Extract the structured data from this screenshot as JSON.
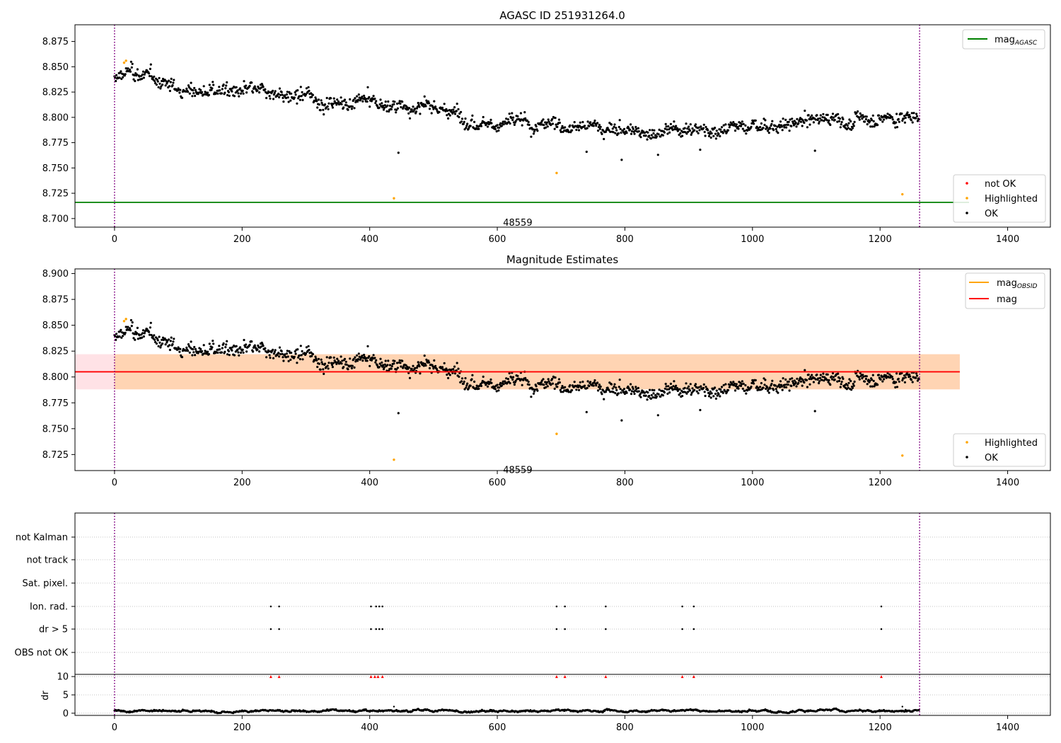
{
  "chart_data": [
    {
      "type": "scatter",
      "title": "AGASC ID 251931264.0",
      "xlim": [
        -62,
        1467
      ],
      "ylim": [
        8.6915,
        8.8915
      ],
      "xticks": [
        0,
        200,
        400,
        600,
        800,
        1000,
        1200,
        1400
      ],
      "xtick_labels": [
        "0",
        "200",
        "400",
        "600",
        "800",
        "1000",
        "1200",
        "1400"
      ],
      "yticks": [
        8.7,
        8.725,
        8.75,
        8.775,
        8.8,
        8.825,
        8.85,
        8.875
      ],
      "ytick_labels": [
        "8.700",
        "8.725",
        "8.750",
        "8.775",
        "8.800",
        "8.825",
        "8.850",
        "8.875"
      ],
      "vlines": [
        0,
        1262
      ],
      "hline": {
        "y": 8.716,
        "label": "mag",
        "label_sub": "AGASC",
        "color": "#008000"
      },
      "annotation": {
        "text": "48559",
        "x": 632,
        "y": 8.6965
      },
      "n_points": 1262,
      "trend": [
        [
          0,
          8.836
        ],
        [
          20,
          8.846
        ],
        [
          100,
          8.828
        ],
        [
          200,
          8.825
        ],
        [
          300,
          8.817
        ],
        [
          400,
          8.814
        ],
        [
          500,
          8.808
        ],
        [
          600,
          8.796
        ],
        [
          700,
          8.792
        ],
        [
          800,
          8.788
        ],
        [
          850,
          8.784
        ],
        [
          900,
          8.791
        ],
        [
          1000,
          8.791
        ],
        [
          1100,
          8.797
        ],
        [
          1200,
          8.8
        ],
        [
          1262,
          8.801
        ]
      ],
      "highlighted": [
        {
          "x": 15,
          "y": 8.854
        },
        {
          "x": 18,
          "y": 8.856
        },
        {
          "x": 438,
          "y": 8.72
        },
        {
          "x": 693,
          "y": 8.745
        },
        {
          "x": 1235,
          "y": 8.724
        }
      ],
      "legend_top": [
        {
          "label": "mag",
          "label_sub": "AGASC",
          "color": "#008000",
          "kind": "line"
        }
      ],
      "legend_bottom": [
        {
          "label": "not OK",
          "color": "#ff0000",
          "kind": "dot"
        },
        {
          "label": "Highlighted",
          "color": "#ffa500",
          "kind": "dot"
        },
        {
          "label": "OK",
          "color": "#000000",
          "kind": "dot"
        }
      ]
    },
    {
      "type": "scatter",
      "title": "Magnitude Estimates",
      "xlim": [
        -62,
        1467
      ],
      "ylim": [
        8.7095,
        8.9045
      ],
      "xticks": [
        0,
        200,
        400,
        600,
        800,
        1000,
        1200,
        1400
      ],
      "xtick_labels": [
        "0",
        "200",
        "400",
        "600",
        "800",
        "1000",
        "1200",
        "1400"
      ],
      "yticks": [
        8.725,
        8.75,
        8.775,
        8.8,
        8.825,
        8.85,
        8.875,
        8.9
      ],
      "ytick_labels": [
        "8.725",
        "8.750",
        "8.775",
        "8.800",
        "8.825",
        "8.850",
        "8.875",
        "8.900"
      ],
      "vlines": [
        0,
        1262
      ],
      "mag_line": {
        "y": 8.805,
        "x_range": [
          -62,
          1325
        ],
        "color": "#ff0000"
      },
      "mag_band": {
        "y_range": [
          8.788,
          8.822
        ],
        "x_range": [
          -62,
          1325
        ],
        "color": "#ffb6c1"
      },
      "obsid_band": {
        "y_range": [
          8.788,
          8.822
        ],
        "x_range": [
          0,
          1325
        ],
        "color": "#ffa500"
      },
      "annotation": {
        "text": "48559",
        "x": 632,
        "y": 8.7105
      },
      "legend_top": [
        {
          "label": "mag",
          "label_sub": "OBSID",
          "color": "#ffa500",
          "kind": "line"
        },
        {
          "label": "mag",
          "label_sub": "",
          "color": "#ff0000",
          "kind": "line"
        }
      ],
      "legend_bottom": [
        {
          "label": "Highlighted",
          "color": "#ffa500",
          "kind": "dot"
        },
        {
          "label": "OK",
          "color": "#000000",
          "kind": "dot"
        }
      ]
    },
    {
      "type": "scatter",
      "xlim": [
        -62,
        1467
      ],
      "xticks": [
        0,
        200,
        400,
        600,
        800,
        1000,
        1200,
        1400
      ],
      "xtick_labels": [
        "0",
        "200",
        "400",
        "600",
        "800",
        "1000",
        "1200",
        "1400"
      ],
      "vlines": [
        0,
        1262
      ],
      "flag_rows": [
        "not Kalman",
        "not track",
        "Sat. pixel.",
        "Ion. rad.",
        "dr > 5",
        "OBS not OK"
      ],
      "ion_rad_x": [
        245,
        258,
        402,
        410,
        415,
        420,
        693,
        706,
        770,
        890,
        908,
        1202
      ],
      "dr_gt5_x": [
        245,
        258,
        402,
        410,
        415,
        420,
        693,
        706,
        770,
        890,
        908,
        1202
      ],
      "dr": {
        "ylabel": "dr",
        "ylim": [
          -0.6,
          10.6
        ],
        "yticks": [
          0,
          5,
          10
        ],
        "ytick_labels": [
          "0",
          "5",
          "10"
        ],
        "clipped_x": [
          245,
          258,
          402,
          408,
          413,
          420,
          693,
          706,
          770,
          890,
          908,
          1202
        ],
        "clipped_value": 10
      }
    }
  ]
}
